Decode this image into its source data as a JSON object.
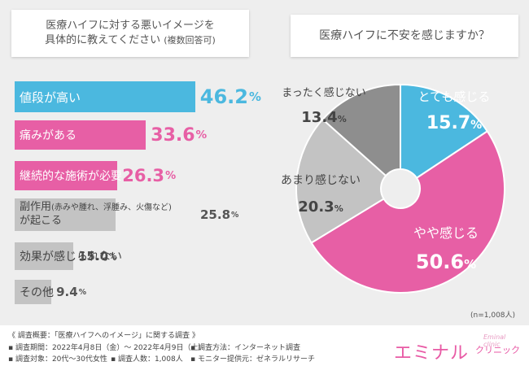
{
  "left_question": {
    "line1": "医療ハイフに対する悪いイメージを",
    "line2": "具体的に教えてください",
    "note": "(複数回答可)"
  },
  "right_question": "医療ハイフに不安を感じますか？",
  "colors": {
    "blue": "#4bb8df",
    "pink": "#e75fa5",
    "gray": "#c3c3c3",
    "dark_gray": "#8e8e8e",
    "white": "#ffffff",
    "pink_text": "#e8448f",
    "gray_text": "#555555"
  },
  "chart_data": [
    {
      "type": "bar",
      "orientation": "horizontal",
      "categories": [
        "値段が高い",
        "痛みがある",
        "継続的な施術が必要",
        "副作用(赤みや腫れ、浮腫み、火傷など)が起こる",
        "効果が感じられない",
        "その他"
      ],
      "labels": [
        {
          "line1": "値段が高い"
        },
        {
          "line1": "痛みがある"
        },
        {
          "line1": "継続的な施術が必要"
        },
        {
          "line1_main": "副作用",
          "line1_small": "(赤みや腫れ、浮腫み、火傷など)",
          "line2": "が起こる"
        },
        {
          "line1": "効果が感じられない"
        },
        {
          "line1": "その他"
        }
      ],
      "values": [
        46.2,
        33.6,
        26.3,
        25.8,
        15.0,
        9.4
      ],
      "value_labels": [
        "46.2",
        "33.6",
        "26.3",
        "25.8",
        "15.0",
        "9.4"
      ],
      "unit": "%",
      "bar_colors": [
        "#4bb8df",
        "#e75fa5",
        "#e75fa5",
        "#c3c3c3",
        "#c3c3c3",
        "#c3c3c3"
      ],
      "label_colors": [
        "#ffffff",
        "#ffffff",
        "#ffffff",
        "#444444",
        "#444444",
        "#444444"
      ],
      "value_colors": [
        "#4bb8df",
        "#e75fa5",
        "#e75fa5",
        "#555555",
        "#555555",
        "#555555"
      ]
    },
    {
      "type": "pie",
      "style": "donut",
      "categories": [
        "とても感じる",
        "やや感じる",
        "あまり感じない",
        "まったく感じない"
      ],
      "values": [
        15.7,
        50.6,
        20.3,
        13.4
      ],
      "value_labels": [
        "15.7",
        "50.6",
        "20.3",
        "13.4"
      ],
      "unit": "%",
      "colors": [
        "#4bb8df",
        "#e75fa5",
        "#c3c3c3",
        "#8e8e8e"
      ],
      "label_colors": [
        "#ffffff",
        "#ffffff",
        "#444444",
        "#444444"
      ],
      "n_note": "(n=1,008人)"
    }
  ],
  "survey": {
    "title": "《 調査概要：「医療ハイフへのイメージ」に関する調査 》",
    "period": "▪ 調査期間：2022年4月8日（金）～ 2022年4月9日（土）",
    "method": "▪ 調査方法：インターネット調査",
    "target": "▪ 調査対象：20代～30代女性",
    "count": "▪ 調査人数：1,008人",
    "provider": "▪ モニター提供元：ゼネラルリサーチ"
  },
  "logo": {
    "main": "エミナル",
    "sub_en": "Eminal clinic",
    "sub_jp": "クリニック"
  }
}
